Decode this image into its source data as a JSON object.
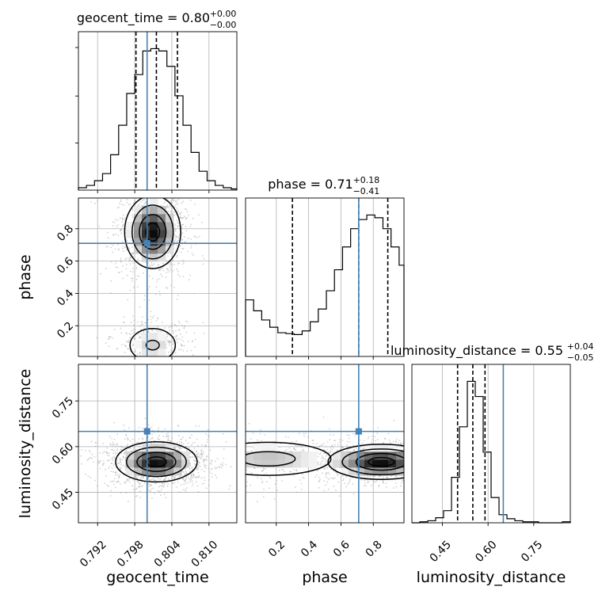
{
  "chart_data": {
    "type": "corner",
    "parameters": [
      "geocent_time",
      "phase",
      "luminosity_distance"
    ],
    "truth": {
      "geocent_time": 0.8,
      "phase": 0.71,
      "luminosity_distance": 0.65
    },
    "ranges": {
      "geocent_time": [
        0.7889,
        0.8145
      ],
      "phase": [
        0.01,
        0.99
      ],
      "luminosity_distance": [
        0.35,
        0.87
      ]
    },
    "ticks": {
      "geocent_time": {
        "values": [
          0.792,
          0.798,
          0.804,
          0.81
        ],
        "labels": [
          "0.792",
          "0.798",
          "0.804",
          "0.810"
        ]
      },
      "phase": {
        "values": [
          0.2,
          0.4,
          0.6,
          0.8
        ],
        "labels": [
          "0.2",
          "0.4",
          "0.6",
          "0.8"
        ]
      },
      "luminosity_distance": {
        "values": [
          0.45,
          0.6,
          0.75
        ],
        "labels": [
          "0.45",
          "0.60",
          "0.75"
        ]
      }
    },
    "titles": {
      "geocent_time": {
        "name": "geocent_time",
        "median": "0.80",
        "upper": "+0.00",
        "lower": "−0.00"
      },
      "phase": {
        "name": "phase",
        "median": "0.71",
        "upper": "+0.18",
        "lower": "−0.41"
      },
      "luminosity_distance": {
        "name": "luminosity_distance",
        "median": "0.55",
        "upper": "+0.04",
        "lower": "−0.05"
      }
    },
    "quantiles": {
      "geocent_time": [
        0.7982,
        0.8015,
        0.8049
      ],
      "phase": [
        0.3,
        0.71,
        0.89
      ],
      "luminosity_distance": [
        0.5,
        0.55,
        0.59
      ]
    },
    "histograms": {
      "geocent_time": {
        "edges": [
          0.7889,
          0.7902,
          0.7915,
          0.7928,
          0.7941,
          0.7954,
          0.7967,
          0.798,
          0.7993,
          0.8006,
          0.8019,
          0.8032,
          0.8045,
          0.8058,
          0.8071,
          0.8084,
          0.8097,
          0.811,
          0.8123,
          0.8136,
          0.8145
        ],
        "counts": [
          2,
          4,
          8,
          14,
          30,
          55,
          82,
          98,
          118,
          120,
          118,
          105,
          80,
          55,
          32,
          16,
          8,
          4,
          2,
          1
        ]
      },
      "phase": {
        "edges": [
          0.01,
          0.06,
          0.11,
          0.16,
          0.21,
          0.26,
          0.31,
          0.36,
          0.41,
          0.46,
          0.51,
          0.56,
          0.61,
          0.66,
          0.71,
          0.76,
          0.81,
          0.86,
          0.91,
          0.96,
          0.99
        ],
        "counts": [
          62,
          50,
          40,
          32,
          26,
          25,
          24,
          28,
          38,
          52,
          72,
          95,
          120,
          140,
          150,
          155,
          152,
          140,
          120,
          100
        ]
      },
      "luminosity_distance": {
        "edges": [
          0.35,
          0.376,
          0.402,
          0.428,
          0.454,
          0.48,
          0.506,
          0.532,
          0.558,
          0.584,
          0.61,
          0.636,
          0.662,
          0.688,
          0.714,
          0.74,
          0.766,
          0.792,
          0.818,
          0.844,
          0.87
        ],
        "counts": [
          0,
          1,
          2,
          5,
          12,
          45,
          95,
          140,
          125,
          70,
          25,
          8,
          4,
          2,
          1,
          1,
          0,
          0,
          0,
          1
        ]
      }
    },
    "density_pairs": [
      {
        "x": "geocent_time",
        "y": "phase",
        "modes": [
          {
            "cx": 0.8009,
            "cy": 0.78,
            "sx": 0.0022,
            "sy": 0.11,
            "w": 1.0
          },
          {
            "cx": 0.8009,
            "cy": 0.08,
            "sx": 0.0025,
            "sy": 0.07,
            "w": 0.35
          }
        ]
      },
      {
        "x": "geocent_time",
        "y": "luminosity_distance",
        "modes": [
          {
            "cx": 0.8015,
            "cy": 0.55,
            "sx": 0.0032,
            "sy": 0.032,
            "w": 1.0
          }
        ]
      },
      {
        "x": "phase",
        "y": "luminosity_distance",
        "modes": [
          {
            "cx": 0.85,
            "cy": 0.55,
            "sx": 0.16,
            "sy": 0.028,
            "w": 1.0
          },
          {
            "cx": 0.15,
            "cy": 0.56,
            "sx": 0.25,
            "sy": 0.035,
            "w": 0.4
          }
        ]
      }
    ],
    "grid": true,
    "truth_color": "#4682b4"
  }
}
